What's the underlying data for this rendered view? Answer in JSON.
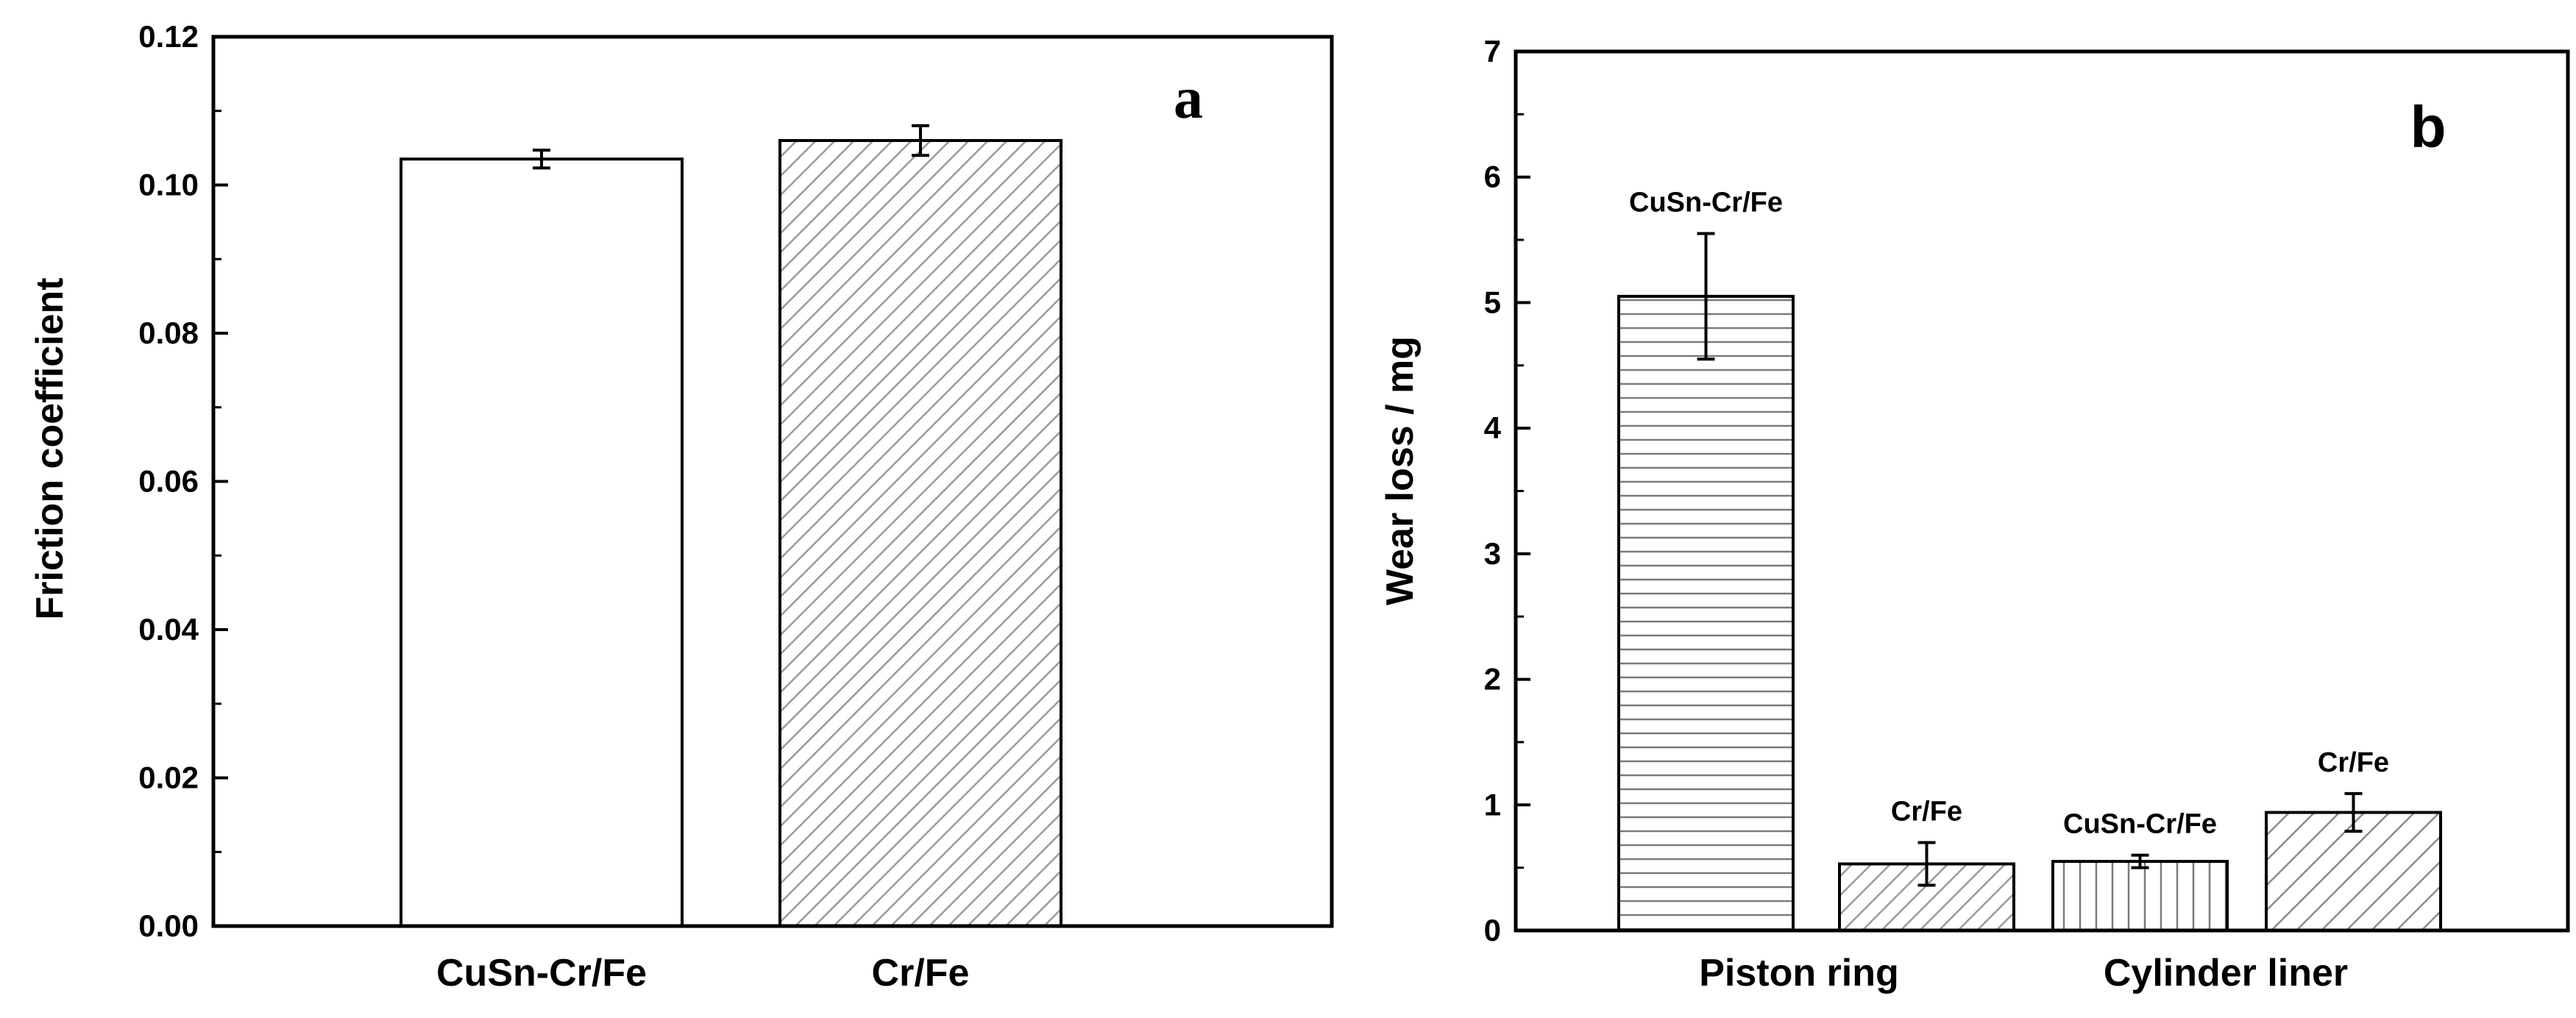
{
  "chart_data": [
    {
      "type": "bar",
      "panel_label": "a",
      "xlabel": "",
      "ylabel": "Friction coefficient",
      "ylim": [
        0,
        0.12
      ],
      "yticks": [
        "0.00",
        "0.02",
        "0.04",
        "0.06",
        "0.08",
        "0.10",
        "0.12"
      ],
      "categories": [
        "CuSn-Cr/Fe",
        "Cr/Fe"
      ],
      "values": [
        0.1035,
        0.106
      ],
      "errors": [
        0.0012,
        0.002
      ],
      "patterns": [
        "none",
        "diagonal"
      ],
      "grid": false,
      "legend": "none"
    },
    {
      "type": "bar",
      "panel_label": "b",
      "xlabel": "",
      "ylabel": "Wear loss / mg",
      "ylim": [
        0,
        7
      ],
      "yticks": [
        "0",
        "1",
        "2",
        "3",
        "4",
        "5",
        "6",
        "7"
      ],
      "groups": [
        "Piston ring",
        "Cylinder liner"
      ],
      "bars": [
        {
          "group": "Piston ring",
          "label": "CuSn-Cr/Fe",
          "value": 5.05,
          "error": 0.5,
          "pattern": "horizontal"
        },
        {
          "group": "Piston ring",
          "label": "Cr/Fe",
          "value": 0.53,
          "error": 0.17,
          "pattern": "diagonal"
        },
        {
          "group": "Cylinder liner",
          "label": "CuSn-Cr/Fe",
          "value": 0.55,
          "error": 0.05,
          "pattern": "vertical"
        },
        {
          "group": "Cylinder liner",
          "label": "Cr/Fe",
          "value": 0.94,
          "error": 0.15,
          "pattern": "diagonal-wide"
        }
      ],
      "grid": false,
      "legend": "none"
    }
  ]
}
